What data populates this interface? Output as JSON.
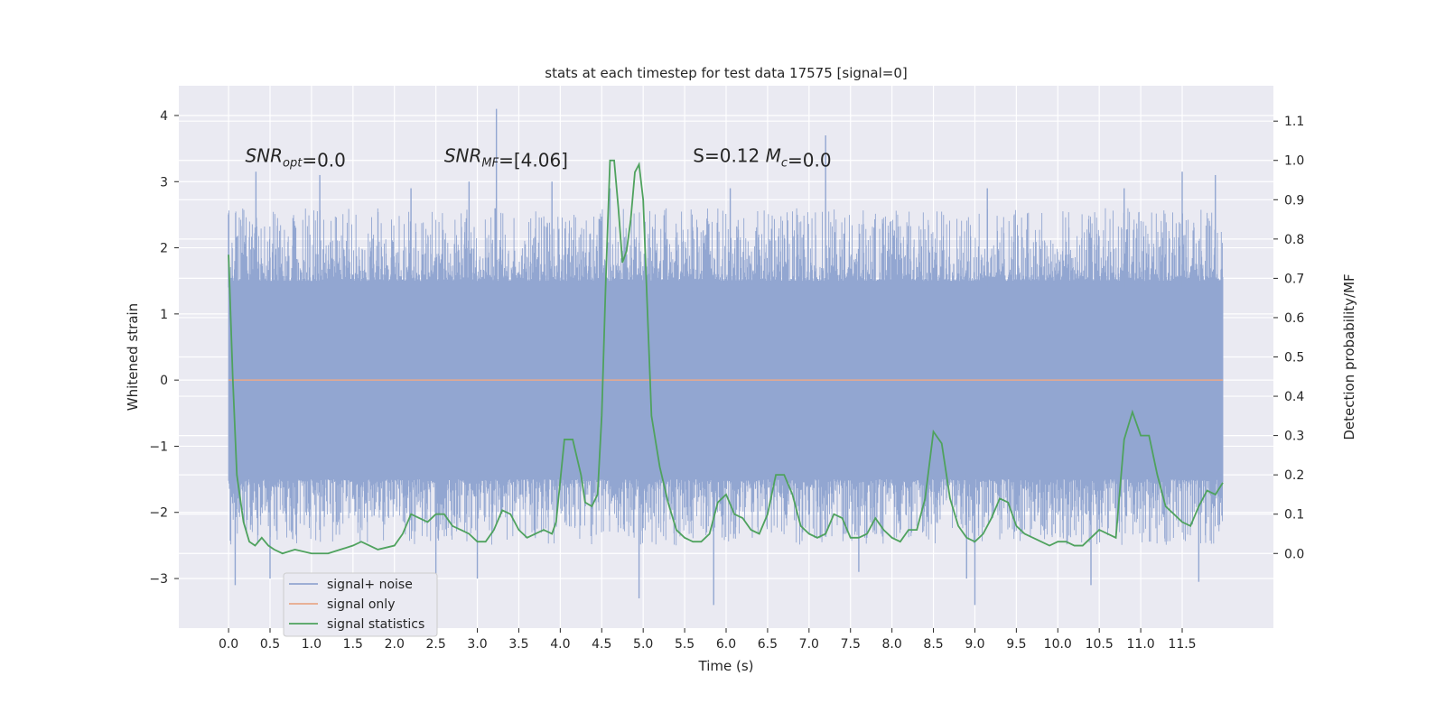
{
  "chart_data": {
    "type": "line",
    "title": "stats at each timestep for test data 17575 [signal=0]",
    "xlabel": "Time (s)",
    "ylabel": "Whitened strain",
    "y2label": "Detection probability/MF",
    "xlim": [
      -0.6,
      12.6
    ],
    "ylim": [
      -3.75,
      4.45
    ],
    "y2lim": [
      -0.19,
      1.19
    ],
    "xticks": [
      0.0,
      0.5,
      1.0,
      1.5,
      2.0,
      2.5,
      3.0,
      3.5,
      4.0,
      4.5,
      5.0,
      5.5,
      6.0,
      6.5,
      7.0,
      7.5,
      8.0,
      8.5,
      9.0,
      9.5,
      10.0,
      10.5,
      11.0,
      11.5
    ],
    "xtick_labels": [
      "0.0",
      "0.5",
      "1.0",
      "1.5",
      "2.0",
      "2.5",
      "3.0",
      "3.5",
      "4.0",
      "4.5",
      "5.0",
      "5.5",
      "6.0",
      "6.5",
      "7.0",
      "7.5",
      "8.0",
      "8.5",
      "9.0",
      "9.5",
      "10.0",
      "10.5",
      "11.0",
      "11.5"
    ],
    "yticks": [
      -3,
      -2,
      -1,
      0,
      1,
      2,
      3,
      4
    ],
    "ytick_labels": [
      "−3",
      "−2",
      "−1",
      "0",
      "1",
      "2",
      "3",
      "4"
    ],
    "y2ticks": [
      0.0,
      0.1,
      0.2,
      0.3,
      0.4,
      0.5,
      0.6,
      0.7,
      0.8,
      0.9,
      1.0,
      1.1
    ],
    "y2tick_labels": [
      "0.0",
      "0.1",
      "0.2",
      "0.3",
      "0.4",
      "0.5",
      "0.6",
      "0.7",
      "0.8",
      "0.9",
      "1.0",
      "1.1"
    ],
    "grid": true,
    "legend_position": "lower-left",
    "annotations": [
      {
        "text": "SNR_opt=0.0",
        "x": 0.2,
        "y": 3.3
      },
      {
        "text": "SNR_MF=[4.06]",
        "x": 2.6,
        "y": 3.3
      },
      {
        "text": "S=0.12   M_c=0.0",
        "x": 5.6,
        "y": 3.3
      }
    ],
    "series": [
      {
        "name": "signal+ noise",
        "color": "#92a6d1",
        "axis": "left",
        "t_range": [
          0.0,
          11.99
        ],
        "band": [
          -1.5,
          1.5
        ],
        "peak_up": [
          [
            0.0,
            2.5
          ],
          [
            0.33,
            3.15
          ],
          [
            1.1,
            3.1
          ],
          [
            2.2,
            2.9
          ],
          [
            2.9,
            3.0
          ],
          [
            3.23,
            4.1
          ],
          [
            3.9,
            3.0
          ],
          [
            4.6,
            2.9
          ],
          [
            6.05,
            2.9
          ],
          [
            7.2,
            3.7
          ],
          [
            9.15,
            2.9
          ],
          [
            10.8,
            2.9
          ],
          [
            11.5,
            3.15
          ],
          [
            11.9,
            3.1
          ]
        ],
        "peak_down": [
          [
            0.08,
            -3.1
          ],
          [
            0.5,
            -3.0
          ],
          [
            2.5,
            -3.2
          ],
          [
            3.0,
            -3.0
          ],
          [
            4.95,
            -3.3
          ],
          [
            5.85,
            -3.4
          ],
          [
            7.6,
            -2.9
          ],
          [
            8.9,
            -3.0
          ],
          [
            9.0,
            -3.4
          ],
          [
            10.4,
            -3.1
          ],
          [
            11.7,
            -3.05
          ]
        ]
      },
      {
        "name": "signal only",
        "color": "#e8a98a",
        "axis": "left",
        "x": [
          0.0,
          11.99
        ],
        "y": [
          0.0,
          0.0
        ]
      },
      {
        "name": "signal statistics",
        "color": "#4fa25e",
        "axis": "right",
        "x": [
          0.0,
          0.05,
          0.1,
          0.18,
          0.25,
          0.32,
          0.4,
          0.48,
          0.55,
          0.65,
          0.8,
          1.0,
          1.2,
          1.35,
          1.5,
          1.6,
          1.7,
          1.8,
          2.0,
          2.1,
          2.2,
          2.3,
          2.4,
          2.5,
          2.6,
          2.7,
          2.8,
          2.9,
          3.0,
          3.1,
          3.2,
          3.3,
          3.4,
          3.5,
          3.6,
          3.7,
          3.8,
          3.9,
          3.95,
          4.05,
          4.15,
          4.25,
          4.3,
          4.38,
          4.45,
          4.5,
          4.55,
          4.6,
          4.65,
          4.7,
          4.75,
          4.8,
          4.85,
          4.9,
          4.95,
          5.0,
          5.1,
          5.2,
          5.3,
          5.4,
          5.5,
          5.6,
          5.7,
          5.8,
          5.9,
          6.0,
          6.1,
          6.2,
          6.3,
          6.4,
          6.5,
          6.6,
          6.7,
          6.8,
          6.9,
          7.0,
          7.1,
          7.2,
          7.3,
          7.4,
          7.5,
          7.6,
          7.7,
          7.8,
          7.9,
          8.0,
          8.1,
          8.2,
          8.3,
          8.4,
          8.5,
          8.6,
          8.7,
          8.8,
          8.9,
          9.0,
          9.1,
          9.2,
          9.3,
          9.4,
          9.5,
          9.6,
          9.7,
          9.8,
          9.9,
          10.0,
          10.1,
          10.2,
          10.3,
          10.4,
          10.5,
          10.6,
          10.7,
          10.8,
          10.9,
          11.0,
          11.1,
          11.2,
          11.3,
          11.4,
          11.5,
          11.6,
          11.7,
          11.8,
          11.9,
          11.99
        ],
        "y": [
          0.76,
          0.45,
          0.2,
          0.08,
          0.03,
          0.02,
          0.04,
          0.02,
          0.01,
          0.0,
          0.01,
          0.0,
          0.0,
          0.01,
          0.02,
          0.03,
          0.02,
          0.01,
          0.02,
          0.05,
          0.1,
          0.09,
          0.08,
          0.1,
          0.1,
          0.07,
          0.06,
          0.05,
          0.03,
          0.03,
          0.06,
          0.11,
          0.1,
          0.06,
          0.04,
          0.05,
          0.06,
          0.05,
          0.08,
          0.29,
          0.29,
          0.2,
          0.13,
          0.12,
          0.15,
          0.35,
          0.7,
          1.0,
          1.0,
          0.88,
          0.74,
          0.77,
          0.85,
          0.97,
          0.99,
          0.9,
          0.35,
          0.22,
          0.13,
          0.06,
          0.04,
          0.03,
          0.03,
          0.05,
          0.13,
          0.15,
          0.1,
          0.09,
          0.06,
          0.05,
          0.1,
          0.2,
          0.2,
          0.15,
          0.07,
          0.05,
          0.04,
          0.05,
          0.1,
          0.09,
          0.04,
          0.04,
          0.05,
          0.09,
          0.06,
          0.04,
          0.03,
          0.06,
          0.06,
          0.14,
          0.31,
          0.28,
          0.14,
          0.07,
          0.04,
          0.03,
          0.05,
          0.09,
          0.14,
          0.13,
          0.07,
          0.05,
          0.04,
          0.03,
          0.02,
          0.03,
          0.03,
          0.02,
          0.02,
          0.04,
          0.06,
          0.05,
          0.04,
          0.29,
          0.36,
          0.3,
          0.3,
          0.2,
          0.12,
          0.1,
          0.08,
          0.07,
          0.12,
          0.16,
          0.15,
          0.18
        ]
      }
    ]
  }
}
